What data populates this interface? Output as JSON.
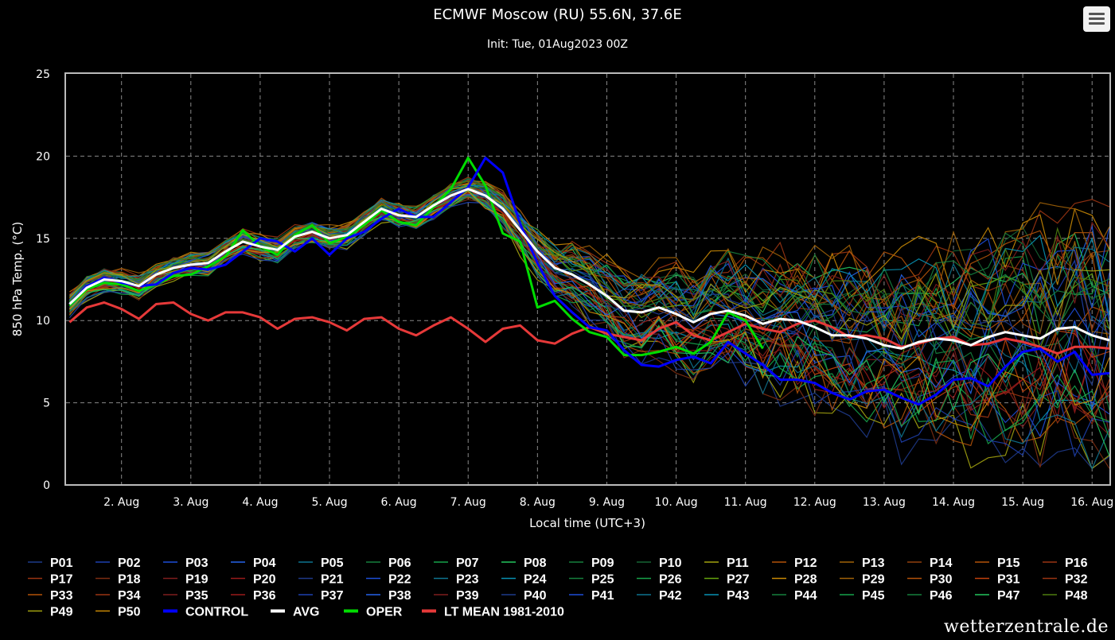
{
  "header": {
    "title": "ECMWF Moscow (RU) 55.6N, 37.6E",
    "subtitle": "Init: Tue, 01Aug2023 00Z",
    "menu_icon": "hamburger-menu-icon"
  },
  "watermark": "wetterzentrale.de",
  "chart_data": {
    "type": "line",
    "xlabel": "Local time (UTC+3)",
    "ylabel": "850 hPa Temp. (°C)",
    "ylim": [
      0,
      25
    ],
    "yticks": [
      0,
      5,
      10,
      15,
      20,
      25
    ],
    "x_range": [
      1.2,
      16.25
    ],
    "x_tick_values": [
      2,
      3,
      4,
      5,
      6,
      7,
      8,
      9,
      10,
      11,
      12,
      13,
      14,
      15,
      16
    ],
    "x_tick_labels": [
      "2. Aug",
      "3. Aug",
      "4. Aug",
      "5. Aug",
      "6. Aug",
      "7. Aug",
      "8. Aug",
      "9. Aug",
      "10. Aug",
      "11. Aug",
      "12. Aug",
      "13. Aug",
      "14. Aug",
      "15. Aug",
      "16. Aug"
    ],
    "grid": true,
    "legend_position": "bottom",
    "ensemble_members": [
      "P01",
      "P02",
      "P03",
      "P04",
      "P05",
      "P06",
      "P07",
      "P08",
      "P09",
      "P10",
      "P11",
      "P12",
      "P13",
      "P14",
      "P15",
      "P16",
      "P17",
      "P18",
      "P19",
      "P20",
      "P21",
      "P22",
      "P23",
      "P24",
      "P25",
      "P26",
      "P27",
      "P28",
      "P29",
      "P30",
      "P31",
      "P32",
      "P33",
      "P34",
      "P35",
      "P36",
      "P37",
      "P38",
      "P39",
      "P40",
      "P41",
      "P42",
      "P43",
      "P44",
      "P45",
      "P46",
      "P47",
      "P48",
      "P49",
      "P50"
    ],
    "member_colors": [
      "#1e3a8a",
      "#1e40af",
      "#1d4ed8",
      "#2563eb",
      "#0e7490",
      "#15803d",
      "#16a34a",
      "#22c55e",
      "#15803d",
      "#166534",
      "#a3a30f",
      "#b45309",
      "#a16207",
      "#92400e",
      "#b45309",
      "#9a3412",
      "#9a3412",
      "#7c2d12",
      "#7f1d1d",
      "#991b1b",
      "#1e3a8a",
      "#1d4ed8",
      "#0e7490",
      "#0891b2",
      "#15803d",
      "#16a34a",
      "#65a30d",
      "#ca8a04",
      "#a16207",
      "#b45309",
      "#c2410c",
      "#9a3412",
      "#b45309",
      "#9a3412",
      "#7f1d1d",
      "#991b1b",
      "#1e40af",
      "#2563eb",
      "#7f1d1d",
      "#1e3a8a",
      "#1d4ed8",
      "#0e7490",
      "#0891b2",
      "#15803d",
      "#16a34a",
      "#15803d",
      "#22c55e",
      "#4d7c0f",
      "#a3a30f",
      "#ca8a04"
    ],
    "x_member_times": [
      1.25,
      1.5,
      1.75,
      2.0,
      2.25,
      2.5,
      2.75,
      3.0,
      3.25,
      3.5,
      3.75,
      4.0,
      4.25,
      4.5,
      4.75,
      5.0,
      5.25,
      5.5,
      5.75,
      6.0,
      6.25,
      6.5,
      6.75,
      7.0,
      7.25,
      7.5,
      7.75,
      8.0,
      8.25,
      8.5,
      8.75,
      9.0,
      9.25,
      9.5,
      9.75,
      10.0,
      10.25,
      10.5,
      10.75,
      11.0,
      11.25,
      11.5,
      11.75,
      12.0,
      12.25,
      12.5,
      12.75,
      13.0,
      13.25,
      13.5,
      13.75,
      14.0,
      14.25,
      14.5,
      14.75,
      15.0,
      15.25,
      15.5,
      15.75,
      16.0,
      16.25
    ],
    "series": [
      {
        "name": "CONTROL",
        "color": "#0000ff",
        "width": 3,
        "x": [
          1.25,
          1.5,
          1.75,
          2.0,
          2.25,
          2.5,
          2.75,
          3.0,
          3.25,
          3.5,
          3.75,
          4.0,
          4.25,
          4.5,
          4.75,
          5.0,
          5.25,
          5.5,
          5.75,
          6.0,
          6.25,
          6.5,
          6.75,
          7.0,
          7.25,
          7.5,
          7.75,
          8.0,
          8.25,
          8.5,
          8.75,
          9.0,
          9.25,
          9.5,
          9.75,
          10.0,
          10.25,
          10.5,
          10.75,
          11.0,
          11.25,
          11.5,
          11.75,
          12.0,
          12.25,
          12.5,
          12.75,
          13.0,
          13.25,
          13.5,
          13.75,
          14.0,
          14.25,
          14.5,
          14.75,
          15.0,
          15.25,
          15.5,
          15.75,
          16.0,
          16.25
        ],
        "y": [
          11.0,
          12.1,
          12.6,
          12.3,
          12.1,
          12.2,
          12.9,
          13.2,
          13.1,
          13.4,
          14.2,
          15.0,
          14.8,
          14.2,
          15.0,
          14.0,
          15.0,
          15.4,
          16.2,
          16.8,
          16.3,
          16.3,
          17.2,
          18.1,
          19.9,
          19.0,
          15.9,
          13.5,
          11.5,
          10.5,
          9.6,
          9.4,
          8.2,
          7.3,
          7.2,
          7.6,
          7.8,
          7.4,
          8.7,
          8.0,
          7.3,
          6.4,
          6.4,
          6.2,
          5.6,
          5.2,
          5.7,
          5.8,
          5.3,
          4.9,
          5.5,
          6.4,
          6.5,
          6.0,
          7.2,
          8.1,
          8.3,
          7.5,
          8.1,
          6.7,
          6.8
        ]
      },
      {
        "name": "AVG",
        "color": "#ffffff",
        "width": 3,
        "x": [
          1.25,
          1.5,
          1.75,
          2.0,
          2.25,
          2.5,
          2.75,
          3.0,
          3.25,
          3.5,
          3.75,
          4.0,
          4.25,
          4.5,
          4.75,
          5.0,
          5.25,
          5.5,
          5.75,
          6.0,
          6.25,
          6.5,
          6.75,
          7.0,
          7.25,
          7.5,
          7.75,
          8.0,
          8.25,
          8.5,
          8.75,
          9.0,
          9.25,
          9.5,
          9.75,
          10.0,
          10.25,
          10.5,
          10.75,
          11.0,
          11.25,
          11.5,
          11.75,
          12.0,
          12.25,
          12.5,
          12.75,
          13.0,
          13.25,
          13.5,
          13.75,
          14.0,
          14.25,
          14.5,
          14.75,
          15.0,
          15.25,
          15.5,
          15.75,
          16.0,
          16.25
        ],
        "y": [
          11.0,
          12.0,
          12.5,
          12.4,
          12.1,
          12.8,
          13.2,
          13.4,
          13.5,
          14.2,
          14.8,
          14.5,
          14.3,
          15.1,
          15.4,
          15.0,
          15.2,
          16.0,
          16.8,
          16.4,
          16.3,
          17.0,
          17.6,
          18.0,
          17.6,
          16.8,
          15.5,
          14.2,
          13.2,
          12.8,
          12.2,
          11.5,
          10.6,
          10.5,
          10.8,
          10.4,
          9.9,
          10.4,
          10.6,
          10.3,
          9.8,
          10.1,
          10.0,
          9.6,
          9.1,
          9.1,
          8.9,
          8.5,
          8.3,
          8.7,
          8.9,
          8.8,
          8.5,
          9.0,
          9.3,
          9.1,
          8.9,
          9.5,
          9.6,
          9.1,
          8.8
        ]
      },
      {
        "name": "OPER",
        "color": "#00dd00",
        "width": 3,
        "x": [
          1.25,
          1.5,
          1.75,
          2.0,
          2.25,
          2.5,
          2.75,
          3.0,
          3.25,
          3.5,
          3.75,
          4.0,
          4.25,
          4.5,
          4.75,
          5.0,
          5.25,
          5.5,
          5.75,
          6.0,
          6.25,
          6.5,
          6.75,
          7.0,
          7.25,
          7.5,
          7.75,
          8.0,
          8.25,
          8.5,
          8.75,
          9.0,
          9.25,
          9.5,
          9.75,
          10.0,
          10.25,
          10.5,
          10.75,
          11.0,
          11.25
        ],
        "y": [
          10.9,
          11.9,
          12.3,
          12.2,
          11.8,
          12.2,
          12.7,
          12.8,
          13.3,
          13.9,
          15.5,
          14.5,
          14.0,
          15.2,
          15.8,
          14.7,
          15.1,
          15.8,
          16.7,
          16.0,
          15.8,
          16.9,
          18.0,
          19.9,
          18.2,
          15.3,
          14.8,
          10.8,
          11.2,
          10.1,
          9.3,
          9.0,
          7.9,
          7.9,
          8.1,
          8.4,
          8.0,
          8.7,
          10.5,
          10.0,
          8.3
        ]
      },
      {
        "name": "LT MEAN 1981-2010",
        "color": "#e63939",
        "width": 3,
        "x": [
          1.25,
          1.5,
          1.75,
          2.0,
          2.25,
          2.5,
          2.75,
          3.0,
          3.25,
          3.5,
          3.75,
          4.0,
          4.25,
          4.5,
          4.75,
          5.0,
          5.25,
          5.5,
          5.75,
          6.0,
          6.25,
          6.5,
          6.75,
          7.0,
          7.25,
          7.5,
          7.75,
          8.0,
          8.25,
          8.5,
          8.75,
          9.0,
          9.25,
          9.5,
          9.75,
          10.0,
          10.25,
          10.5,
          10.75,
          11.0,
          11.25,
          11.5,
          11.75,
          12.0,
          12.25,
          12.5,
          12.75,
          13.0,
          13.25,
          13.5,
          13.75,
          14.0,
          14.25,
          14.5,
          14.75,
          15.0,
          15.25,
          15.5,
          15.75,
          16.0,
          16.25
        ],
        "y": [
          9.9,
          10.8,
          11.1,
          10.7,
          10.1,
          11.0,
          11.1,
          10.4,
          10.0,
          10.5,
          10.5,
          10.2,
          9.5,
          10.1,
          10.2,
          9.9,
          9.4,
          10.1,
          10.2,
          9.5,
          9.1,
          9.7,
          10.2,
          9.5,
          8.7,
          9.5,
          9.7,
          8.8,
          8.6,
          9.2,
          9.6,
          9.2,
          9.0,
          8.8,
          9.5,
          9.9,
          9.1,
          8.8,
          9.3,
          9.8,
          9.5,
          9.3,
          9.8,
          10.0,
          9.6,
          9.0,
          9.1,
          8.9,
          8.4,
          8.6,
          8.9,
          9.0,
          8.5,
          8.6,
          8.9,
          8.7,
          8.4,
          8.0,
          8.4,
          8.4,
          8.3
        ]
      }
    ]
  }
}
